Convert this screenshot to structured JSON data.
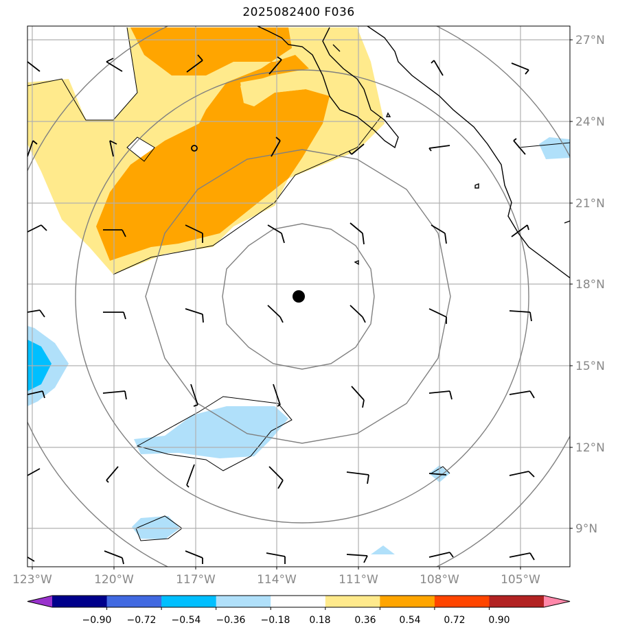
{
  "title": "2025082400 F036",
  "map": {
    "lat_labels": [
      "27°N",
      "24°N",
      "21°N",
      "18°N",
      "15°N",
      "12°N",
      "9°N"
    ],
    "lon_labels": [
      "123°W",
      "120°W",
      "117°W",
      "114°W",
      "111°W",
      "108°W",
      "105°W"
    ],
    "center_marker": {
      "lat": 17.5,
      "lon": -113.2
    },
    "range_rings": 4
  },
  "colorbar": {
    "ticks": [
      "−0.90",
      "−0.72",
      "−0.54",
      "−0.36",
      "−0.18",
      "0.18",
      "0.36",
      "0.54",
      "0.72",
      "0.90"
    ],
    "colors": [
      "#9932cc",
      "#00008b",
      "#4169e1",
      "#00bfff",
      "#b0e0fa",
      "#ffffff",
      "#ffea8c",
      "#ffa500",
      "#ff4500",
      "#b22222",
      "#ff88aa"
    ]
  }
}
